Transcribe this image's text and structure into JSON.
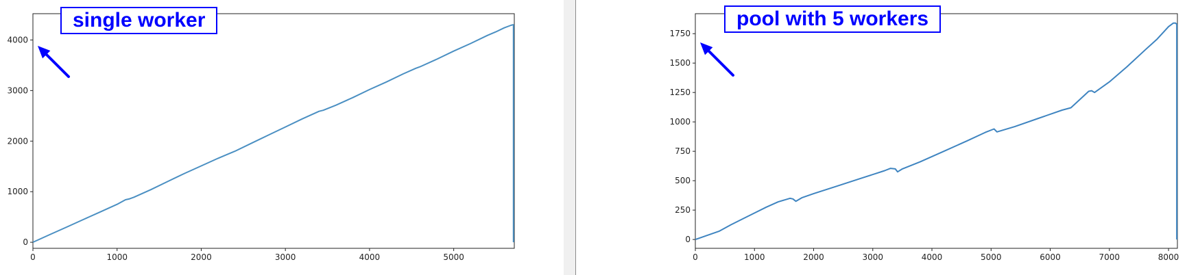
{
  "chart_data": [
    {
      "type": "line",
      "title": "",
      "annotation": "single worker",
      "xlabel": "",
      "ylabel": "",
      "xlim": [
        0,
        5720
      ],
      "ylim": [
        -120,
        4520
      ],
      "xticks": [
        0,
        1000,
        2000,
        3000,
        4000,
        5000
      ],
      "yticks": [
        0,
        1000,
        2000,
        3000,
        4000
      ],
      "grid": false,
      "line_color": "#4a8fc2",
      "arrow_color": "#0000ff",
      "series": [
        {
          "x": [
            0,
            200,
            400,
            600,
            800,
            1000,
            1100,
            1150,
            1200,
            1400,
            1600,
            1800,
            2000,
            2200,
            2300,
            2400,
            2600,
            2800,
            3000,
            3200,
            3400,
            3450,
            3600,
            3800,
            4000,
            4200,
            4400,
            4550,
            4600,
            4800,
            5000,
            5200,
            5400,
            5500,
            5600,
            5680,
            5700,
            5710,
            5710
          ],
          "y": [
            0,
            150,
            300,
            450,
            600,
            750,
            840,
            860,
            890,
            1040,
            1200,
            1360,
            1510,
            1660,
            1730,
            1800,
            1960,
            2120,
            2280,
            2440,
            2590,
            2610,
            2710,
            2860,
            3020,
            3170,
            3330,
            3440,
            3470,
            3620,
            3780,
            3930,
            4090,
            4160,
            4240,
            4290,
            4300,
            4300,
            0
          ]
        }
      ]
    },
    {
      "type": "line",
      "title": "",
      "annotation": "pool with 5 workers",
      "xlabel": "",
      "ylabel": "",
      "xlim": [
        0,
        8150
      ],
      "ylim": [
        -75,
        1920
      ],
      "xticks": [
        0,
        1000,
        2000,
        3000,
        4000,
        5000,
        6000,
        7000,
        8000
      ],
      "yticks": [
        0,
        250,
        500,
        750,
        1000,
        1250,
        1500,
        1750
      ],
      "grid": false,
      "line_color": "#3e84c0",
      "arrow_color": "#0000ff",
      "series": [
        {
          "x": [
            0,
            200,
            400,
            600,
            800,
            1000,
            1200,
            1400,
            1600,
            1650,
            1700,
            1800,
            2000,
            2400,
            2800,
            3200,
            3300,
            3380,
            3420,
            3500,
            3800,
            4200,
            4600,
            4900,
            5050,
            5100,
            5400,
            5800,
            6200,
            6350,
            6500,
            6650,
            6700,
            6750,
            7000,
            7300,
            7600,
            7800,
            8000,
            8080,
            8120,
            8140,
            8140
          ],
          "y": [
            0,
            35,
            70,
            125,
            175,
            225,
            275,
            320,
            350,
            345,
            325,
            355,
            390,
            455,
            520,
            585,
            605,
            600,
            575,
            600,
            660,
            750,
            840,
            910,
            940,
            915,
            960,
            1030,
            1100,
            1120,
            1190,
            1260,
            1265,
            1250,
            1340,
            1470,
            1610,
            1700,
            1810,
            1840,
            1840,
            1830,
            0
          ]
        }
      ]
    }
  ]
}
